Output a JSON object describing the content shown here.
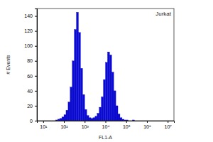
{
  "chart_data": {
    "type": "histogram",
    "title": "Jurkat",
    "x_label": "FL1-A",
    "y_label": "# Events",
    "log": "x",
    "color": "#0a0ad0",
    "bins": [
      31.6,
      39.8,
      50.1,
      63.1,
      79.4,
      100,
      125.9,
      158.5,
      199.5,
      251.2,
      316.2,
      398.1,
      501.2,
      631,
      794.3,
      1000,
      1258.9,
      1584.9,
      1995.3,
      2511.9,
      3162.3,
      3981.1,
      5011.9,
      6309.6,
      7943.3,
      10000,
      12589.3,
      15848.9,
      19952.6,
      25118.9,
      31622.8,
      39810.7,
      50118.7,
      63095.7,
      79432.8,
      100000,
      125892.5,
      158489.3,
      199526.2,
      251188.6,
      316227.8
    ],
    "values": [
      0,
      1,
      2,
      3,
      5,
      8,
      14,
      25,
      45,
      80,
      122,
      145,
      118,
      70,
      35,
      15,
      7,
      4,
      3,
      4,
      6,
      10,
      18,
      32,
      55,
      78,
      92,
      88,
      65,
      40,
      20,
      9,
      4,
      2,
      1,
      1,
      0,
      0,
      1,
      0
    ],
    "xlim": [
      5,
      20000000
    ],
    "xticks": [
      {
        "value": 10,
        "label": "10¹"
      },
      {
        "value": 100,
        "label": "10²"
      },
      {
        "value": 1000,
        "label": "10³"
      },
      {
        "value": 10000,
        "label": "10⁴"
      },
      {
        "value": 100000,
        "label": "10⁵"
      },
      {
        "value": 1000000,
        "label": "10⁶"
      },
      {
        "value": 10000000,
        "label": "10⁷"
      }
    ],
    "ylim": [
      0,
      150
    ],
    "yticks": [
      0,
      20,
      40,
      60,
      80,
      100,
      120,
      140
    ]
  }
}
